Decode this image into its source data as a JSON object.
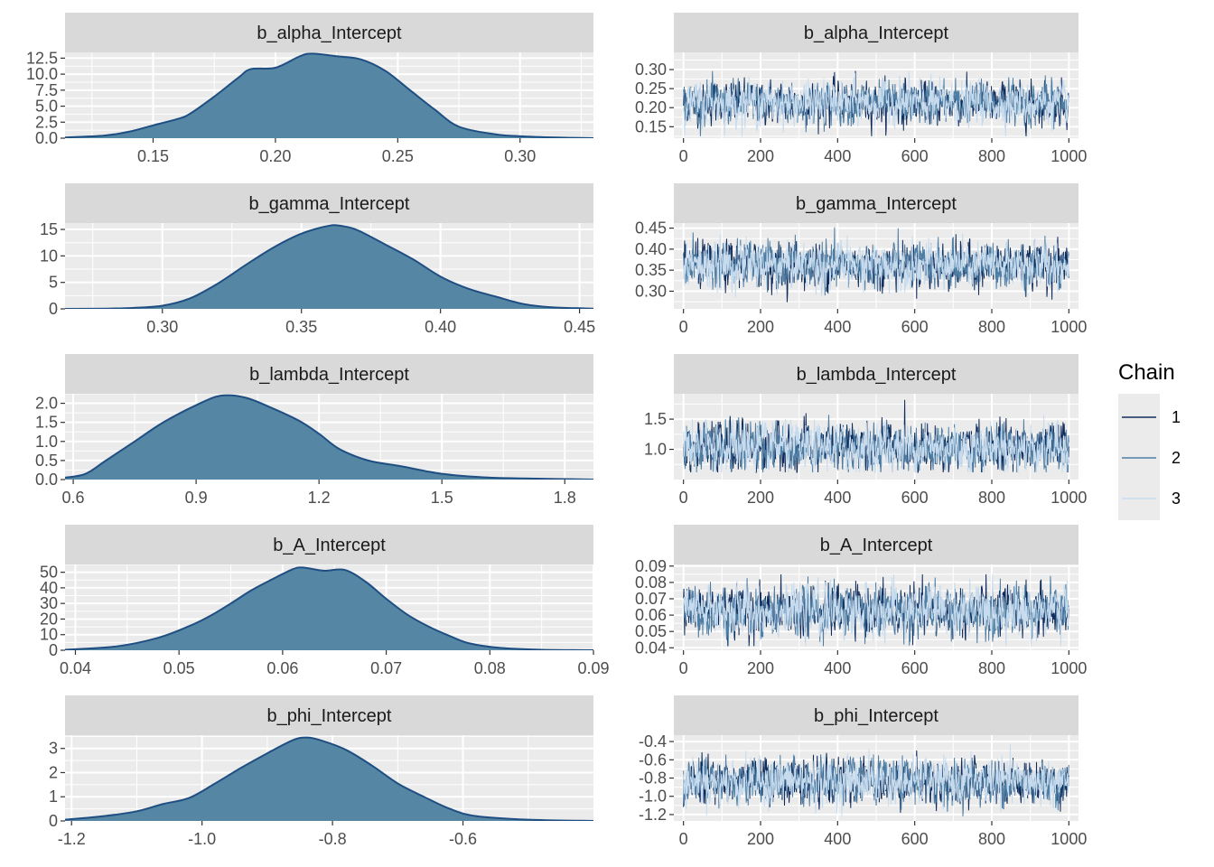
{
  "colors": {
    "panel_bg": "#ebebeb",
    "strip_bg": "#d9d9d9",
    "grid_major": "#ffffff",
    "density_fill": "#5587a4",
    "density_line": "#1f4e82",
    "chain1": "#0f2c5c",
    "chain2": "#4e7ea4",
    "chain3": "#c6dbee"
  },
  "legend": {
    "title": "Chain",
    "entries": [
      {
        "label": "1",
        "color": "#0f2c5c"
      },
      {
        "label": "2",
        "color": "#4e7ea4"
      },
      {
        "label": "3",
        "color": "#c6dbee"
      }
    ]
  },
  "chart_data": [
    {
      "type": "area",
      "title": "b_alpha_Intercept",
      "xlim": [
        0.114,
        0.33
      ],
      "ylim": [
        0,
        13.4
      ],
      "xticks": [
        0.15,
        0.2,
        0.25,
        0.3
      ],
      "xtick_labels": [
        "0.15",
        "0.20",
        "0.25",
        "0.30"
      ],
      "yticks": [
        0,
        2.5,
        5,
        7.5,
        10,
        12.5
      ],
      "ytick_labels": [
        "0.0",
        "2.5",
        "5.0",
        "7.5",
        "10.0",
        "12.5"
      ],
      "x": [
        0.114,
        0.13,
        0.14,
        0.15,
        0.16,
        0.165,
        0.175,
        0.185,
        0.19,
        0.2,
        0.21,
        0.215,
        0.225,
        0.235,
        0.245,
        0.255,
        0.265,
        0.275,
        0.29,
        0.3,
        0.315,
        0.33
      ],
      "y": [
        0.1,
        0.4,
        1.0,
        2.0,
        3.0,
        3.8,
        6.5,
        9.5,
        10.8,
        11.0,
        12.8,
        13.2,
        12.8,
        12.3,
        10.5,
        7.5,
        4.5,
        1.8,
        0.6,
        0.3,
        0.1,
        0.0
      ]
    },
    {
      "type": "line",
      "title": "b_alpha_Intercept",
      "xlim": [
        -25,
        1025
      ],
      "ylim": [
        0.12,
        0.345
      ],
      "xticks": [
        0,
        200,
        400,
        600,
        800,
        1000
      ],
      "xtick_labels": [
        "0",
        "200",
        "400",
        "600",
        "800",
        "1000"
      ],
      "yticks": [
        0.15,
        0.2,
        0.25,
        0.3
      ],
      "ytick_labels": [
        "0.15",
        "0.20",
        "0.25",
        "0.30"
      ],
      "trace": {
        "iterations": 1000,
        "mean": 0.213,
        "sd": 0.027,
        "min": 0.125,
        "max": 0.335
      }
    },
    {
      "type": "area",
      "title": "b_gamma_Intercept",
      "xlim": [
        0.265,
        0.455
      ],
      "ylim": [
        0,
        16.2
      ],
      "xticks": [
        0.3,
        0.35,
        0.4,
        0.45
      ],
      "xtick_labels": [
        "0.30",
        "0.35",
        "0.40",
        "0.45"
      ],
      "yticks": [
        0,
        5,
        10,
        15
      ],
      "ytick_labels": [
        "0",
        "5",
        "10",
        "15"
      ],
      "x": [
        0.265,
        0.28,
        0.29,
        0.3,
        0.31,
        0.32,
        0.33,
        0.34,
        0.35,
        0.36,
        0.365,
        0.37,
        0.38,
        0.39,
        0.4,
        0.41,
        0.42,
        0.43,
        0.44,
        0.455
      ],
      "y": [
        0.0,
        0.05,
        0.2,
        0.6,
        2.0,
        4.8,
        8.3,
        11.6,
        14.2,
        15.7,
        15.6,
        14.9,
        12.2,
        9.4,
        6.1,
        3.8,
        2.3,
        0.9,
        0.3,
        0.05
      ]
    },
    {
      "type": "line",
      "title": "b_gamma_Intercept",
      "xlim": [
        -25,
        1025
      ],
      "ylim": [
        0.258,
        0.462
      ],
      "xticks": [
        0,
        200,
        400,
        600,
        800,
        1000
      ],
      "xtick_labels": [
        "0",
        "200",
        "400",
        "600",
        "800",
        "1000"
      ],
      "yticks": [
        0.3,
        0.35,
        0.4,
        0.45
      ],
      "ytick_labels": [
        "0.30",
        "0.35",
        "0.40",
        "0.45"
      ],
      "trace": {
        "iterations": 1000,
        "mean": 0.362,
        "sd": 0.026,
        "min": 0.268,
        "max": 0.452
      }
    },
    {
      "type": "area",
      "title": "b_lambda_Intercept",
      "xlim": [
        0.58,
        1.87
      ],
      "ylim": [
        0,
        2.25
      ],
      "xticks": [
        0.6,
        0.9,
        1.2,
        1.5,
        1.8
      ],
      "xtick_labels": [
        "0.6",
        "0.9",
        "1.2",
        "1.5",
        "1.8"
      ],
      "yticks": [
        0,
        0.5,
        1,
        1.5,
        2
      ],
      "ytick_labels": [
        "0.0",
        "0.5",
        "1.0",
        "1.5",
        "2.0"
      ],
      "x": [
        0.58,
        0.63,
        0.68,
        0.75,
        0.82,
        0.9,
        0.96,
        1.02,
        1.08,
        1.15,
        1.2,
        1.25,
        1.32,
        1.4,
        1.5,
        1.6,
        1.7,
        1.87
      ],
      "y": [
        0.05,
        0.15,
        0.5,
        1.0,
        1.5,
        1.95,
        2.2,
        2.15,
        1.9,
        1.55,
        1.2,
        0.8,
        0.5,
        0.35,
        0.15,
        0.06,
        0.03,
        0.0
      ]
    },
    {
      "type": "line",
      "title": "b_lambda_Intercept",
      "xlim": [
        -25,
        1025
      ],
      "ylim": [
        0.5,
        1.92
      ],
      "xticks": [
        0,
        200,
        400,
        600,
        800,
        1000
      ],
      "xtick_labels": [
        "0",
        "200",
        "400",
        "600",
        "800",
        "1000"
      ],
      "yticks": [
        1.0,
        1.5
      ],
      "ytick_labels": [
        "1.0",
        "1.5"
      ],
      "trace": {
        "iterations": 1000,
        "mean": 1.03,
        "sd": 0.19,
        "min": 0.62,
        "max": 1.82
      }
    },
    {
      "type": "area",
      "title": "b_A_Intercept",
      "xlim": [
        0.039,
        0.09
      ],
      "ylim": [
        0,
        55
      ],
      "xticks": [
        0.04,
        0.05,
        0.06,
        0.07,
        0.08,
        0.09
      ],
      "xtick_labels": [
        "0.04",
        "0.05",
        "0.06",
        "0.07",
        "0.08",
        "0.09"
      ],
      "yticks": [
        0,
        10,
        20,
        30,
        40,
        50
      ],
      "ytick_labels": [
        "0",
        "10",
        "20",
        "30",
        "40",
        "50"
      ],
      "x": [
        0.039,
        0.044,
        0.048,
        0.051,
        0.053,
        0.055,
        0.057,
        0.059,
        0.061,
        0.062,
        0.064,
        0.066,
        0.068,
        0.07,
        0.072,
        0.074,
        0.076,
        0.078,
        0.081,
        0.085,
        0.09
      ],
      "y": [
        0.3,
        2.5,
        8.0,
        15.5,
        22.0,
        30.0,
        38.5,
        45.5,
        52.0,
        53.0,
        51.0,
        51.5,
        44.0,
        33.0,
        23.0,
        15.5,
        9.5,
        4.5,
        1.5,
        0.3,
        0.0
      ]
    },
    {
      "type": "line",
      "title": "b_A_Intercept",
      "xlim": [
        -25,
        1025
      ],
      "ylim": [
        0.0385,
        0.091
      ],
      "xticks": [
        0,
        200,
        400,
        600,
        800,
        1000
      ],
      "xtick_labels": [
        "0",
        "200",
        "400",
        "600",
        "800",
        "1000"
      ],
      "yticks": [
        0.04,
        0.05,
        0.06,
        0.07,
        0.08,
        0.09
      ],
      "ytick_labels": [
        "0.04",
        "0.05",
        "0.06",
        "0.07",
        "0.08",
        "0.09"
      ],
      "trace": {
        "iterations": 1000,
        "mean": 0.0625,
        "sd": 0.0075,
        "min": 0.041,
        "max": 0.085
      }
    },
    {
      "type": "area",
      "title": "b_phi_Intercept",
      "xlim": [
        -1.21,
        -0.4
      ],
      "ylim": [
        0,
        3.55
      ],
      "xticks": [
        -1.2,
        -1.0,
        -0.8,
        -0.6
      ],
      "xtick_labels": [
        "-1.2",
        "-1.0",
        "-0.8",
        "-0.6"
      ],
      "yticks": [
        0,
        1,
        2,
        3
      ],
      "ytick_labels": [
        "0",
        "1",
        "2",
        "3"
      ],
      "x": [
        -1.21,
        -1.15,
        -1.1,
        -1.06,
        -1.02,
        -0.98,
        -0.94,
        -0.9,
        -0.86,
        -0.84,
        -0.82,
        -0.78,
        -0.74,
        -0.7,
        -0.66,
        -0.62,
        -0.58,
        -0.5,
        -0.4
      ],
      "y": [
        0.05,
        0.2,
        0.4,
        0.7,
        0.95,
        1.55,
        2.2,
        2.8,
        3.35,
        3.45,
        3.35,
        2.95,
        2.3,
        1.55,
        1.0,
        0.5,
        0.2,
        0.05,
        0.0
      ]
    },
    {
      "type": "line",
      "title": "b_phi_Intercept",
      "xlim": [
        -25,
        1025
      ],
      "ylim": [
        -1.27,
        -0.33
      ],
      "xticks": [
        0,
        200,
        400,
        600,
        800,
        1000
      ],
      "xtick_labels": [
        "0",
        "200",
        "400",
        "600",
        "800",
        "1000"
      ],
      "yticks": [
        -1.2,
        -1.0,
        -0.8,
        -0.6,
        -0.4
      ],
      "ytick_labels": [
        "-1.2",
        "-1.0",
        "-0.8",
        "-0.6",
        "-0.4"
      ],
      "trace": {
        "iterations": 1000,
        "mean": -0.84,
        "sd": 0.12,
        "min": -1.22,
        "max": -0.4
      }
    }
  ]
}
